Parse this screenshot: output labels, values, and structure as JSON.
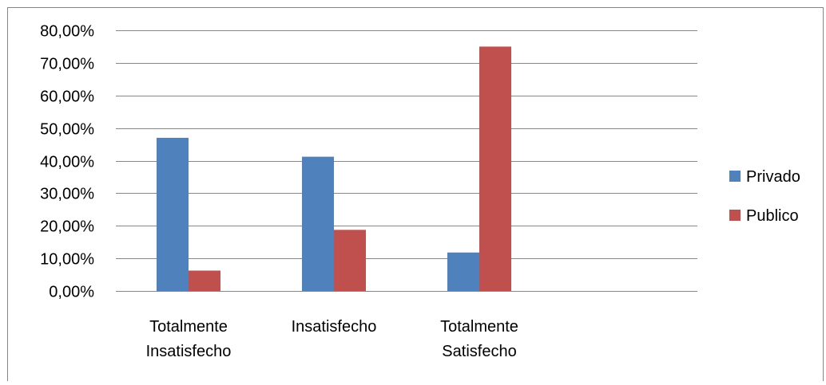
{
  "chart_data": {
    "type": "bar",
    "title": "",
    "xlabel": "",
    "ylabel": "",
    "categories": [
      [
        "Totalmente",
        "Insatisfecho"
      ],
      [
        "Insatisfecho"
      ],
      [
        "Totalmente",
        "Satisfecho"
      ]
    ],
    "series": [
      {
        "name": "Privado",
        "values": [
          0.47,
          0.412,
          0.118
        ],
        "color": "#4f81bd"
      },
      {
        "name": "Publico",
        "values": [
          0.0625,
          0.1875,
          0.75
        ],
        "color": "#c0504d"
      }
    ],
    "ylim": [
      0,
      0.8
    ],
    "yticks": [
      0,
      0.1,
      0.2,
      0.3,
      0.4,
      0.5,
      0.6,
      0.7,
      0.8
    ],
    "ytick_labels": [
      "0,00%",
      "10,00%",
      "20,00%",
      "30,00%",
      "40,00%",
      "50,00%",
      "60,00%",
      "70,00%",
      "80,00%"
    ],
    "grid": true,
    "legend_position": "right",
    "colors": {
      "gridline": "#878787",
      "border": "#868686"
    }
  }
}
